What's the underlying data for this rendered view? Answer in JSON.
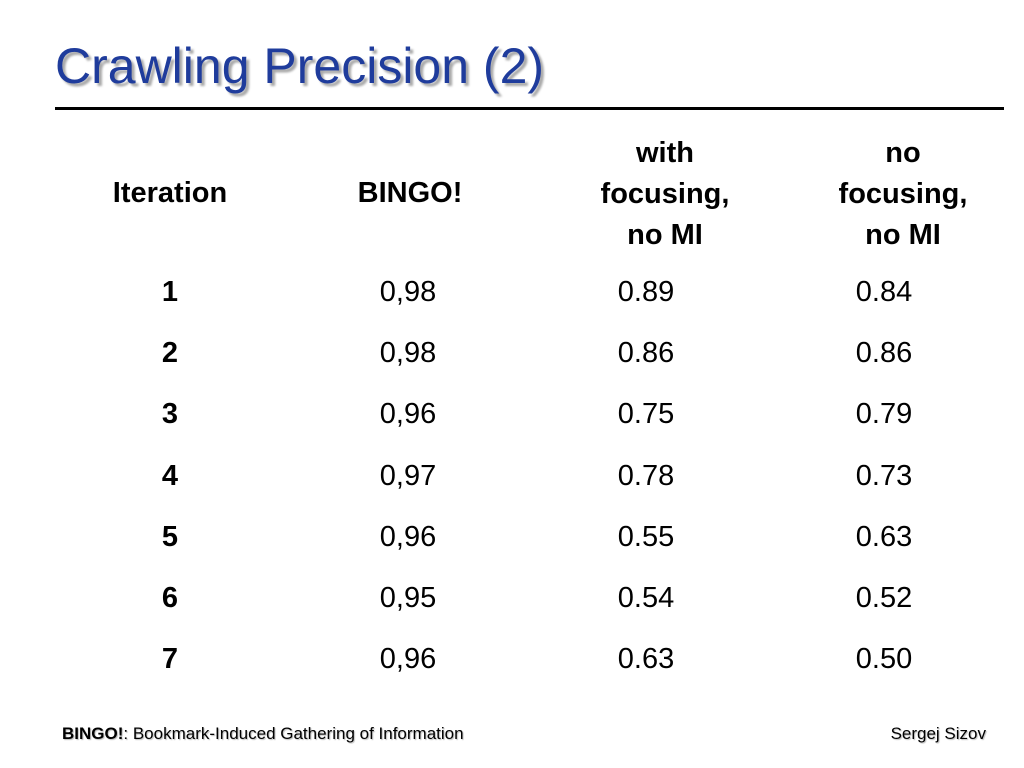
{
  "slide": {
    "title": "Crawling Precision (2)"
  },
  "table": {
    "headers": [
      "Iteration",
      "BINGO!",
      "with\nfocusing,\nno MI",
      "no\nfocusing,\nno MI"
    ],
    "rows": [
      [
        "1",
        "0,98",
        "0.89",
        "0.84"
      ],
      [
        "2",
        "0,98",
        "0.86",
        "0.86"
      ],
      [
        "3",
        "0,96",
        "0.75",
        "0.79"
      ],
      [
        "4",
        "0,97",
        "0.78",
        "0.73"
      ],
      [
        "5",
        "0,96",
        "0.55",
        "0.63"
      ],
      [
        "6",
        "0,95",
        "0.54",
        "0.52"
      ],
      [
        "7",
        "0,96",
        "0.63",
        "0.50"
      ]
    ]
  },
  "footer": {
    "left_bold": "BINGO!",
    "left_rest": ": Bookmark-Induced Gathering of Information",
    "right": "Sergej Sizov"
  },
  "colors": {
    "title": "#1f3c9c",
    "rule": "#000000"
  }
}
